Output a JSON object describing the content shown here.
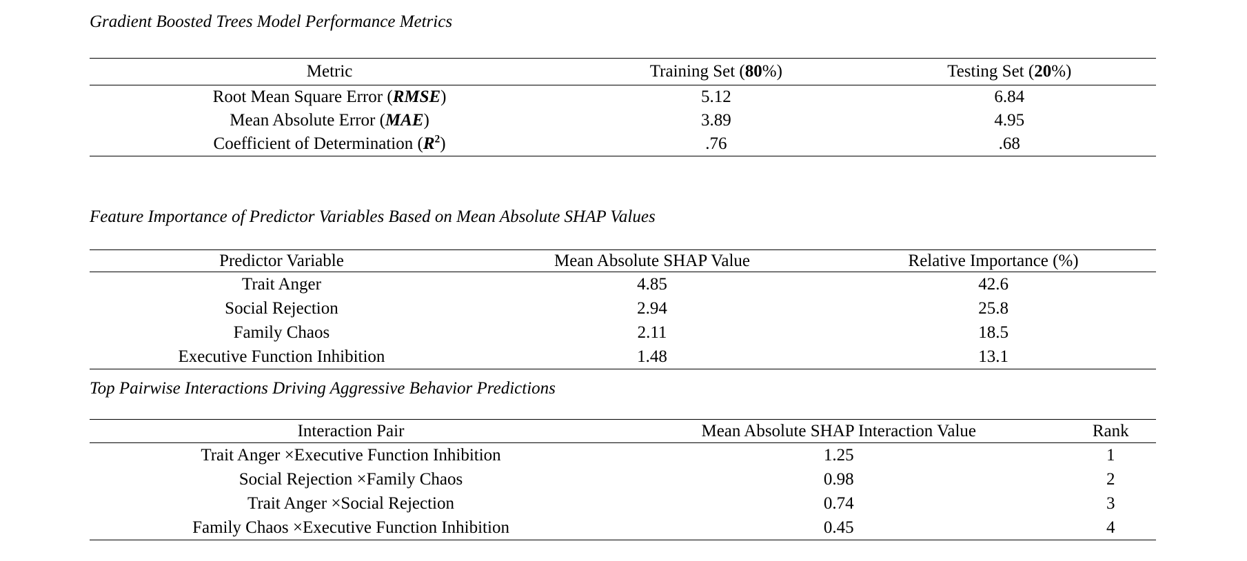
{
  "document": {
    "background": "#ffffff",
    "text_color": "#000000",
    "rule_color": "#000000"
  },
  "sections": [
    {
      "title": "Gradient Boosted Trees Model Performance Metrics",
      "table": {
        "column_widths": [
          "45%",
          "27.5%",
          "27.5%"
        ],
        "header": [
          [
            {
              "t": "Metric"
            }
          ],
          [
            {
              "t": "Training Set ("
            },
            {
              "t": "80",
              "b": true
            },
            {
              "t": "%)"
            }
          ],
          [
            {
              "t": "Testing Set ("
            },
            {
              "t": "20",
              "b": true
            },
            {
              "t": "%)"
            }
          ]
        ],
        "rows": [
          [
            [
              {
                "t": "Root Mean Square Error ("
              },
              {
                "t": "RMSE",
                "b": true,
                "i": true
              },
              {
                "t": ")"
              }
            ],
            [
              {
                "t": "5.12"
              }
            ],
            [
              {
                "t": "6.84"
              }
            ]
          ],
          [
            [
              {
                "t": "Mean Absolute Error ("
              },
              {
                "t": "MAE",
                "b": true,
                "i": true
              },
              {
                "t": ")"
              }
            ],
            [
              {
                "t": "3.89"
              }
            ],
            [
              {
                "t": "4.95"
              }
            ]
          ],
          [
            [
              {
                "t": "Coefficient of Determination ("
              },
              {
                "t": "R",
                "b": true,
                "i": true
              },
              {
                "t": "2",
                "b": true,
                "sup": true
              },
              {
                "t": ")"
              }
            ],
            [
              {
                "t": ".76"
              }
            ],
            [
              {
                "t": ".68"
              }
            ]
          ]
        ]
      }
    },
    {
      "title": "Feature Importance of Predictor Variables Based on Mean Absolute SHAP Values",
      "table": {
        "column_widths": [
          "36%",
          "33.5%",
          "30.5%"
        ],
        "header": [
          [
            {
              "t": "Predictor Variable"
            }
          ],
          [
            {
              "t": "Mean Absolute SHAP Value"
            }
          ],
          [
            {
              "t": "Relative Importance (%)"
            }
          ]
        ],
        "rows": [
          [
            [
              {
                "t": "Trait Anger"
              }
            ],
            [
              {
                "t": "4.85"
              }
            ],
            [
              {
                "t": "42.6"
              }
            ]
          ],
          [
            [
              {
                "t": "Social Rejection"
              }
            ],
            [
              {
                "t": "2.94"
              }
            ],
            [
              {
                "t": "25.8"
              }
            ]
          ],
          [
            [
              {
                "t": "Family Chaos"
              }
            ],
            [
              {
                "t": "2.11"
              }
            ],
            [
              {
                "t": "18.5"
              }
            ]
          ],
          [
            [
              {
                "t": "Executive Function Inhibition"
              }
            ],
            [
              {
                "t": "1.48"
              }
            ],
            [
              {
                "t": "13.1"
              }
            ]
          ]
        ]
      }
    },
    {
      "title": "Top Pairwise Interactions Driving Aggressive Behavior Predictions",
      "table": {
        "column_widths": [
          "49%",
          "42.5%",
          "8.5%"
        ],
        "header": [
          [
            {
              "t": "Interaction Pair"
            }
          ],
          [
            {
              "t": "Mean Absolute SHAP Interaction Value"
            }
          ],
          [
            {
              "t": "Rank"
            }
          ]
        ],
        "rows": [
          [
            [
              {
                "t": "Trait Anger ×Executive Function Inhibition"
              }
            ],
            [
              {
                "t": "1.25"
              }
            ],
            [
              {
                "t": "1"
              }
            ]
          ],
          [
            [
              {
                "t": "Social Rejection ×Family Chaos"
              }
            ],
            [
              {
                "t": "0.98"
              }
            ],
            [
              {
                "t": "2"
              }
            ]
          ],
          [
            [
              {
                "t": "Trait Anger ×Social Rejection"
              }
            ],
            [
              {
                "t": "0.74"
              }
            ],
            [
              {
                "t": "3"
              }
            ]
          ],
          [
            [
              {
                "t": "Family Chaos ×Executive Function Inhibition"
              }
            ],
            [
              {
                "t": "0.45"
              }
            ],
            [
              {
                "t": "4"
              }
            ]
          ]
        ]
      }
    }
  ]
}
